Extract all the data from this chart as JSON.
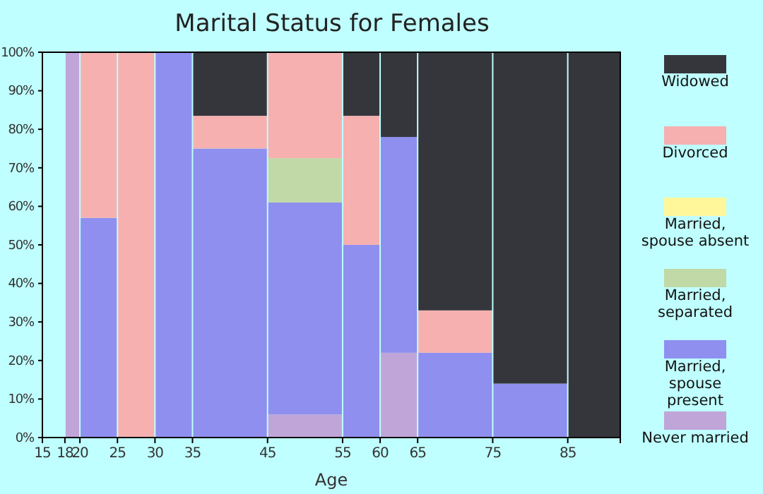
{
  "chart_data": {
    "type": "bar",
    "stacked": true,
    "title": "Marital Status for Females",
    "xlabel": "Age",
    "x": [
      16.5,
      19,
      22.5,
      27.5,
      32.5,
      40,
      50,
      57.5,
      62.5,
      70,
      80,
      88.5
    ],
    "xlim": [
      15,
      92
    ],
    "xticks": [
      15,
      18,
      20,
      25,
      30,
      35,
      45,
      55,
      60,
      65,
      75,
      85
    ],
    "ylim": [
      0,
      100
    ],
    "yticks": [
      {
        "value": 0,
        "label": "0%"
      },
      {
        "value": 10,
        "label": "10%"
      },
      {
        "value": 20,
        "label": "20%"
      },
      {
        "value": 30,
        "label": "30%"
      },
      {
        "value": 40,
        "label": "40%"
      },
      {
        "value": 50,
        "label": "50%"
      },
      {
        "value": 60,
        "label": "60%"
      },
      {
        "value": 70,
        "label": "70%"
      },
      {
        "value": 80,
        "label": "80%"
      },
      {
        "value": 90,
        "label": "90%"
      },
      {
        "value": 100,
        "label": "100%"
      }
    ],
    "legend": "right",
    "grid": false,
    "series": [
      {
        "name": "Never married",
        "color": "#c0a6d8",
        "values": [
          0,
          100,
          0,
          0,
          0,
          0,
          6,
          0,
          22,
          0,
          0,
          0
        ]
      },
      {
        "name": "Married, spouse present",
        "color": "#8f8ff0",
        "values": [
          0,
          0,
          57,
          0,
          100,
          75,
          55,
          50,
          56,
          22,
          14,
          0
        ]
      },
      {
        "name": "Married, separated",
        "color": "#c1d9a6",
        "values": [
          0,
          0,
          0,
          0,
          0,
          0,
          11.5,
          0,
          0,
          0,
          0,
          0
        ]
      },
      {
        "name": "Married, spouse absent",
        "color": "#fff799",
        "values": [
          0,
          0,
          0,
          0,
          0,
          0,
          0,
          0,
          0,
          0,
          0,
          0
        ]
      },
      {
        "name": "Divorced",
        "color": "#f7b0b0",
        "values": [
          0,
          0,
          43,
          100,
          0,
          8.5,
          27.5,
          33.5,
          0,
          11,
          0,
          0
        ]
      },
      {
        "name": "Widowed",
        "color": "#35363c",
        "values": [
          0,
          0,
          0,
          0,
          0,
          16.5,
          0,
          16.5,
          22,
          67,
          86,
          100
        ]
      }
    ]
  }
}
